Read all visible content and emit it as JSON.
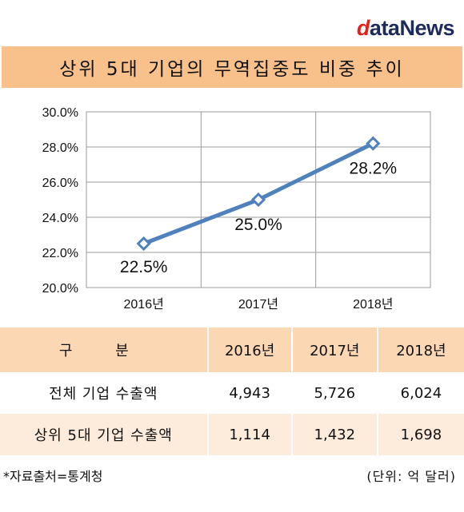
{
  "logo": {
    "d": "d",
    "ata": "ata",
    "news": "News"
  },
  "title": "상위 5대 기업의 무역집중도 비중 추이",
  "chart_data": {
    "type": "line",
    "categories": [
      "2016년",
      "2017년",
      "2018년"
    ],
    "series": [
      {
        "values": [
          22.5,
          25.0,
          28.2
        ]
      }
    ],
    "data_labels": [
      "22.5%",
      "25.0%",
      "28.2%"
    ],
    "ylim": [
      20.0,
      30.0
    ],
    "y_ticks": [
      20.0,
      22.0,
      24.0,
      26.0,
      28.0,
      30.0
    ],
    "y_tick_labels": [
      "20.0%",
      "22.0%",
      "24.0%",
      "26.0%",
      "28.0%",
      "30.0%"
    ],
    "grid": true,
    "legend": "none",
    "line_color": "#4f81bd",
    "marker": "diamond"
  },
  "table": {
    "header": [
      "구 분",
      "2016년",
      "2017년",
      "2018년"
    ],
    "rows": [
      [
        "전체 기업 수출액",
        "4,943",
        "5,726",
        "6,024"
      ],
      [
        "상위 5대 기업 수출액",
        "1,114",
        "1,432",
        "1,698"
      ]
    ]
  },
  "footer": {
    "source": "*자료출처=통계청",
    "unit": "(단위: 억 달러)"
  }
}
